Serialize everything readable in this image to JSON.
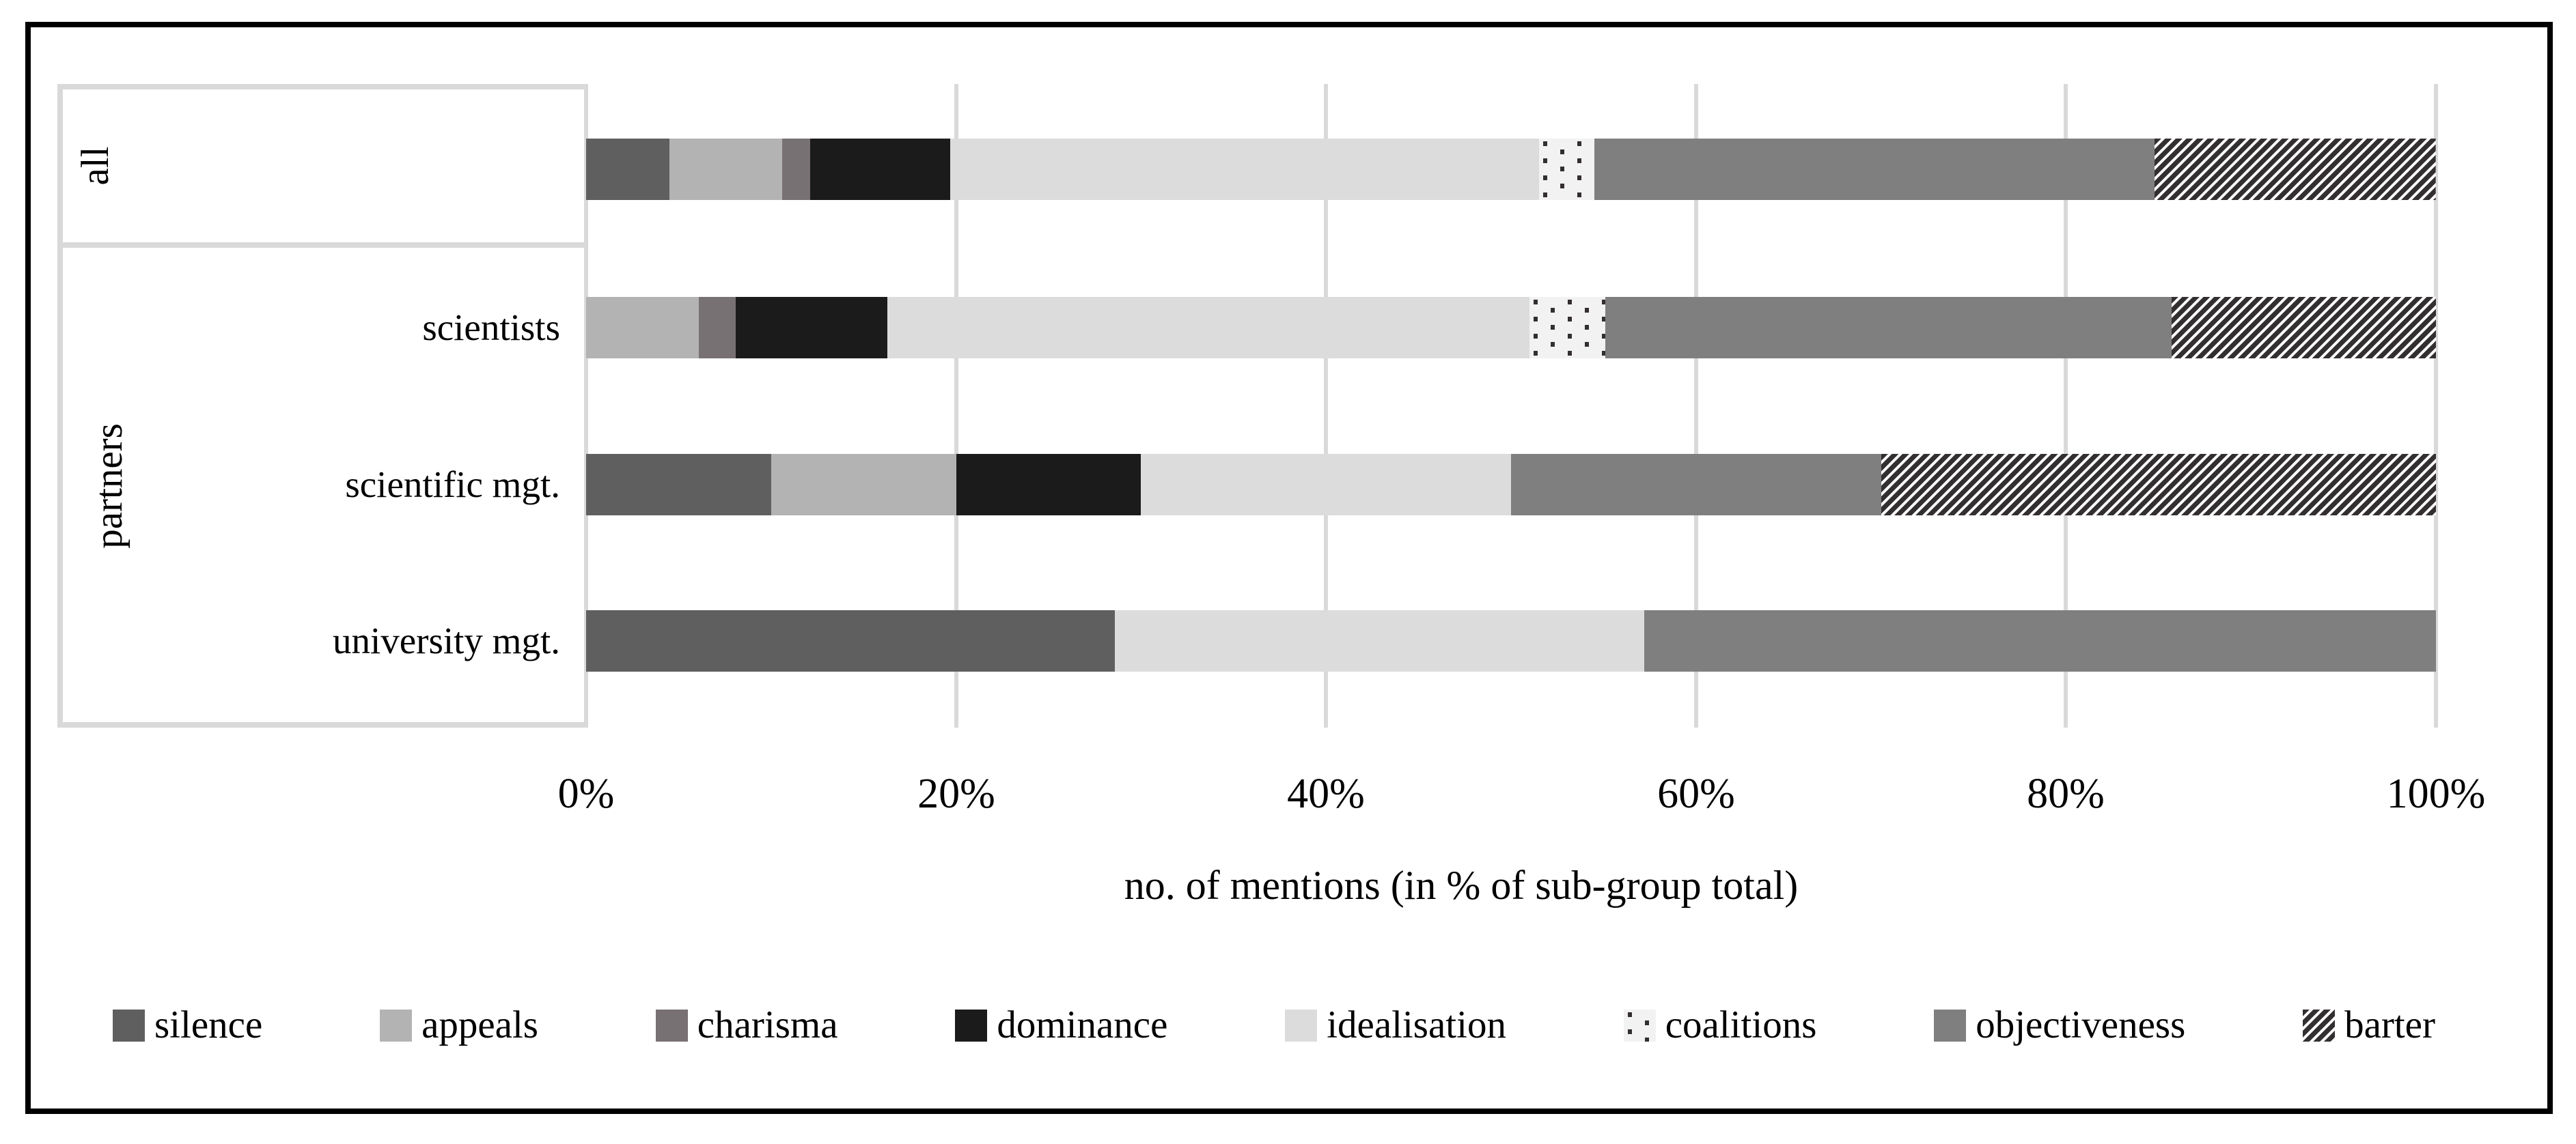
{
  "chart_data": {
    "type": "bar",
    "orientation": "horizontal",
    "stacked": true,
    "title": "",
    "xlabel": "no. of mentions (in % of sub-group total)",
    "ylabel_groups": {
      "top": "all",
      "bottom": "partners"
    },
    "categories": [
      "all",
      "scientists",
      "scientific mgt.",
      "university mgt."
    ],
    "category_axis_note": "first category labelled by rotated group label 'all'; remaining three grouped under rotated label 'partners'",
    "x_ticks": [
      "0%",
      "20%",
      "40%",
      "60%",
      "80%",
      "100%"
    ],
    "xlim": [
      0,
      100
    ],
    "grid": true,
    "legend_position": "bottom",
    "series": [
      {
        "name": "silence",
        "fill": "solid",
        "color": "#5f5f5f",
        "values": [
          4.5,
          0,
          10,
          28.6
        ]
      },
      {
        "name": "appeals",
        "fill": "solid",
        "color": "#b3b3b3",
        "values": [
          6.1,
          6.1,
          10,
          0
        ]
      },
      {
        "name": "charisma",
        "fill": "solid",
        "color": "#787173",
        "values": [
          1.5,
          2.0,
          0,
          0
        ]
      },
      {
        "name": "dominance",
        "fill": "solid",
        "color": "#1b1b1c",
        "values": [
          7.6,
          8.2,
          10,
          0
        ]
      },
      {
        "name": "idealisation",
        "fill": "solid",
        "color": "#dcdcdc",
        "values": [
          31.8,
          34.7,
          20,
          28.6
        ]
      },
      {
        "name": "coalitions",
        "fill": "dotted",
        "color": "#332e30",
        "bg": "#f2f2f2",
        "values": [
          3.0,
          4.1,
          0,
          0
        ]
      },
      {
        "name": "objectiveness",
        "fill": "solid",
        "color": "#7f7f7f",
        "values": [
          30.3,
          30.6,
          20,
          42.8
        ]
      },
      {
        "name": "barter",
        "fill": "hatch",
        "color": "#332f30",
        "bg": "#ffffff",
        "values": [
          15.2,
          14.3,
          30,
          0
        ]
      }
    ],
    "colors": {
      "gridline": "#d9d9d9",
      "panel_border": "#d9d9d9",
      "frame": "#000000",
      "background": "#ffffff"
    }
  }
}
